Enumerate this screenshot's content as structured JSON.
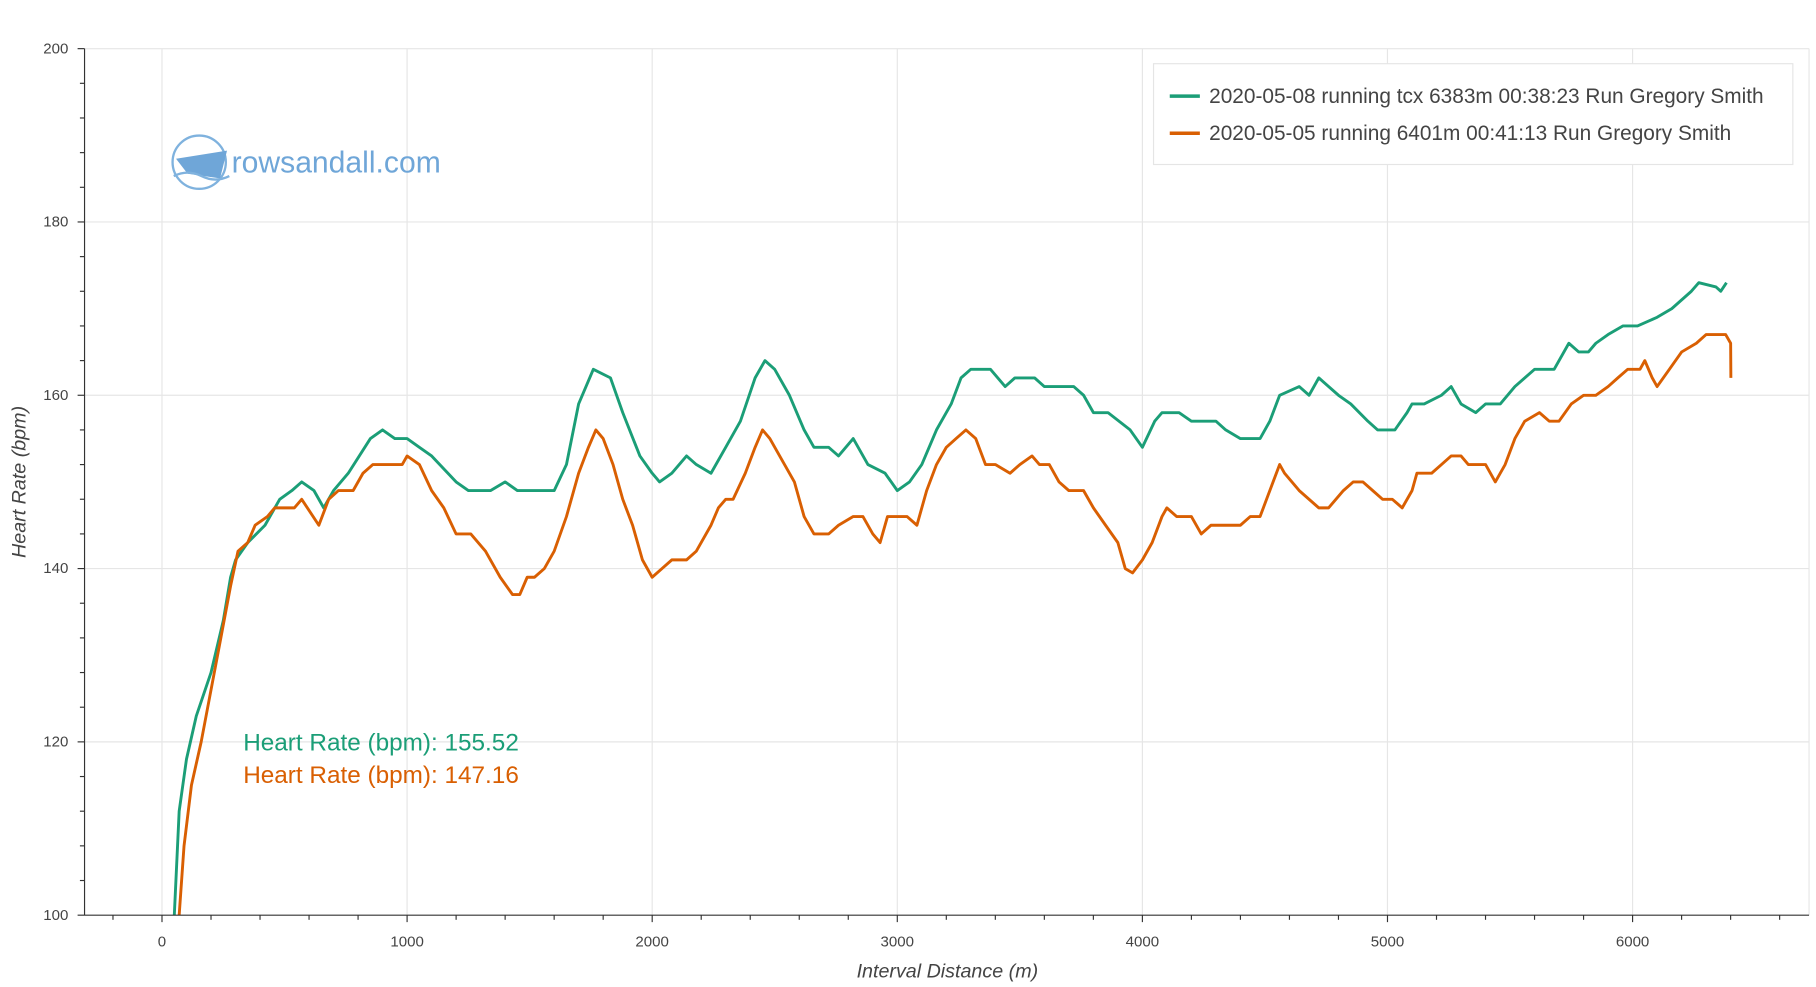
{
  "chart_data": {
    "type": "line",
    "xlabel": "Interval Distance (m)",
    "ylabel": "Heart Rate (bpm)",
    "xlim": [
      -316,
      6720
    ],
    "ylim": [
      100,
      200
    ],
    "x_ticks": [
      0,
      1000,
      2000,
      3000,
      4000,
      5000,
      6000
    ],
    "y_ticks": [
      100,
      120,
      140,
      160,
      180,
      200
    ],
    "grid": true,
    "legend_position": "top-right",
    "series": [
      {
        "name": "2020-05-08 running tcx 6383m 00:38:23 Run Gregory Smith",
        "color": "#1b9e77",
        "x": [
          50,
          70,
          100,
          140,
          200,
          250,
          280,
          300,
          350,
          420,
          480,
          530,
          570,
          620,
          660,
          700,
          760,
          850,
          900,
          950,
          1000,
          1050,
          1100,
          1200,
          1250,
          1340,
          1400,
          1450,
          1600,
          1650,
          1700,
          1760,
          1830,
          1880,
          1950,
          2000,
          2030,
          2080,
          2140,
          2180,
          2240,
          2300,
          2360,
          2420,
          2460,
          2500,
          2560,
          2620,
          2660,
          2720,
          2760,
          2820,
          2880,
          2950,
          3000,
          3050,
          3100,
          3160,
          3220,
          3260,
          3300,
          3380,
          3440,
          3480,
          3560,
          3600,
          3720,
          3760,
          3800,
          3860,
          3950,
          4000,
          4050,
          4080,
          4150,
          4200,
          4300,
          4340,
          4400,
          4480,
          4520,
          4560,
          4640,
          4680,
          4720,
          4800,
          4850,
          4920,
          4960,
          5030,
          5080,
          5100,
          5150,
          5220,
          5260,
          5300,
          5360,
          5400,
          5460,
          5520,
          5600,
          5680,
          5740,
          5780,
          5820,
          5850,
          5900,
          5960,
          6020,
          6100,
          6160,
          6240,
          6270,
          6340,
          6360,
          6383
        ],
        "y": [
          100,
          112,
          118,
          123,
          128,
          134,
          139,
          141,
          143,
          145,
          148,
          149,
          150,
          149,
          147,
          149,
          151,
          155,
          156,
          155,
          155,
          154,
          153,
          150,
          149,
          149,
          150,
          149,
          149,
          152,
          159,
          163,
          162,
          158,
          153,
          151,
          150,
          151,
          153,
          152,
          151,
          154,
          157,
          162,
          164,
          163,
          160,
          156,
          154,
          154,
          153,
          155,
          152,
          151,
          149,
          150,
          152,
          156,
          159,
          162,
          163,
          163,
          161,
          162,
          162,
          161,
          161,
          160,
          158,
          158,
          156,
          154,
          157,
          158,
          158,
          157,
          157,
          156,
          155,
          155,
          157,
          160,
          161,
          160,
          162,
          160,
          159,
          157,
          156,
          156,
          158,
          159,
          159,
          160,
          161,
          159,
          158,
          159,
          159,
          161,
          163,
          163,
          166,
          165,
          165,
          166,
          167,
          168,
          168,
          169,
          170,
          172,
          173,
          172.5,
          172,
          173
        ]
      },
      {
        "name": "2020-05-05 running 6401m 00:41:13 Run Gregory Smith",
        "color": "#d95f02",
        "x": [
          70,
          90,
          120,
          160,
          200,
          240,
          280,
          310,
          350,
          380,
          430,
          460,
          540,
          570,
          640,
          680,
          720,
          780,
          820,
          860,
          980,
          1000,
          1050,
          1100,
          1150,
          1200,
          1260,
          1320,
          1380,
          1430,
          1460,
          1490,
          1520,
          1560,
          1600,
          1650,
          1700,
          1740,
          1770,
          1800,
          1840,
          1880,
          1920,
          1960,
          2000,
          2040,
          2080,
          2140,
          2180,
          2240,
          2270,
          2300,
          2330,
          2380,
          2420,
          2450,
          2480,
          2540,
          2580,
          2620,
          2660,
          2720,
          2760,
          2820,
          2860,
          2900,
          2930,
          2960,
          3040,
          3080,
          3120,
          3160,
          3200,
          3240,
          3280,
          3320,
          3360,
          3400,
          3460,
          3500,
          3550,
          3580,
          3620,
          3660,
          3700,
          3760,
          3800,
          3850,
          3900,
          3930,
          3960,
          4000,
          4040,
          4080,
          4100,
          4140,
          4200,
          4240,
          4280,
          4400,
          4440,
          4480,
          4520,
          4560,
          4580,
          4640,
          4720,
          4760,
          4820,
          4860,
          4900,
          4940,
          4980,
          5020,
          5060,
          5100,
          5120,
          5180,
          5220,
          5260,
          5300,
          5330,
          5400,
          5440,
          5480,
          5520,
          5560,
          5620,
          5660,
          5700,
          5750,
          5800,
          5850,
          5900,
          5940,
          5980,
          6030,
          6050,
          6080,
          6100,
          6150,
          6200,
          6260,
          6300,
          6340,
          6380,
          6400,
          6401
        ],
        "y": [
          100,
          108,
          115,
          120,
          126,
          132,
          138,
          142,
          143,
          145,
          146,
          147,
          147,
          148,
          145,
          148,
          149,
          149,
          151,
          152,
          152,
          153,
          152,
          149,
          147,
          144,
          144,
          142,
          139,
          137,
          137,
          139,
          139,
          140,
          142,
          146,
          151,
          154,
          156,
          155,
          152,
          148,
          145,
          141,
          139,
          140,
          141,
          141,
          142,
          145,
          147,
          148,
          148,
          151,
          154,
          156,
          155,
          152,
          150,
          146,
          144,
          144,
          145,
          146,
          146,
          144,
          143,
          146,
          146,
          145,
          149,
          152,
          154,
          155,
          156,
          155,
          152,
          152,
          151,
          152,
          153,
          152,
          152,
          150,
          149,
          149,
          147,
          145,
          143,
          140,
          139.5,
          141,
          143,
          146,
          147,
          146,
          146,
          144,
          145,
          145,
          146,
          146,
          149,
          152,
          151,
          149,
          147,
          147,
          149,
          150,
          150,
          149,
          148,
          148,
          147,
          149,
          151,
          151,
          152,
          153,
          153,
          152,
          152,
          150,
          152,
          155,
          157,
          158,
          157,
          157,
          159,
          160,
          160,
          161,
          162,
          163,
          163,
          164,
          162,
          161,
          163,
          165,
          166,
          167,
          167,
          167,
          166,
          162
        ]
      }
    ],
    "annotations": [
      {
        "text": "Heart Rate (bpm): 155.52",
        "color": "#1b9e77"
      },
      {
        "text": "Heart Rate (bpm): 147.16",
        "color": "#d95f02"
      }
    ]
  },
  "watermark": {
    "text_main": "rowsandall",
    "text_tld": ".com"
  }
}
